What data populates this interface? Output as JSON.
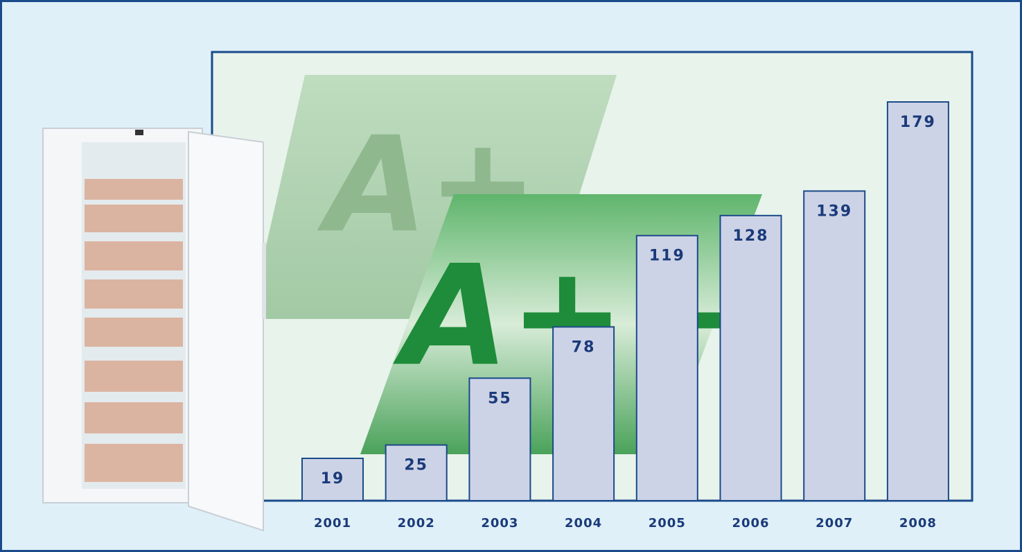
{
  "chart_data": {
    "type": "bar",
    "categories": [
      "2001",
      "2002",
      "2003",
      "2004",
      "2005",
      "2006",
      "2007",
      "2008"
    ],
    "values": [
      19,
      25,
      55,
      78,
      119,
      128,
      139,
      179
    ],
    "color": "#cdd3e6",
    "annotations": [
      "A+",
      "A++"
    ]
  }
}
